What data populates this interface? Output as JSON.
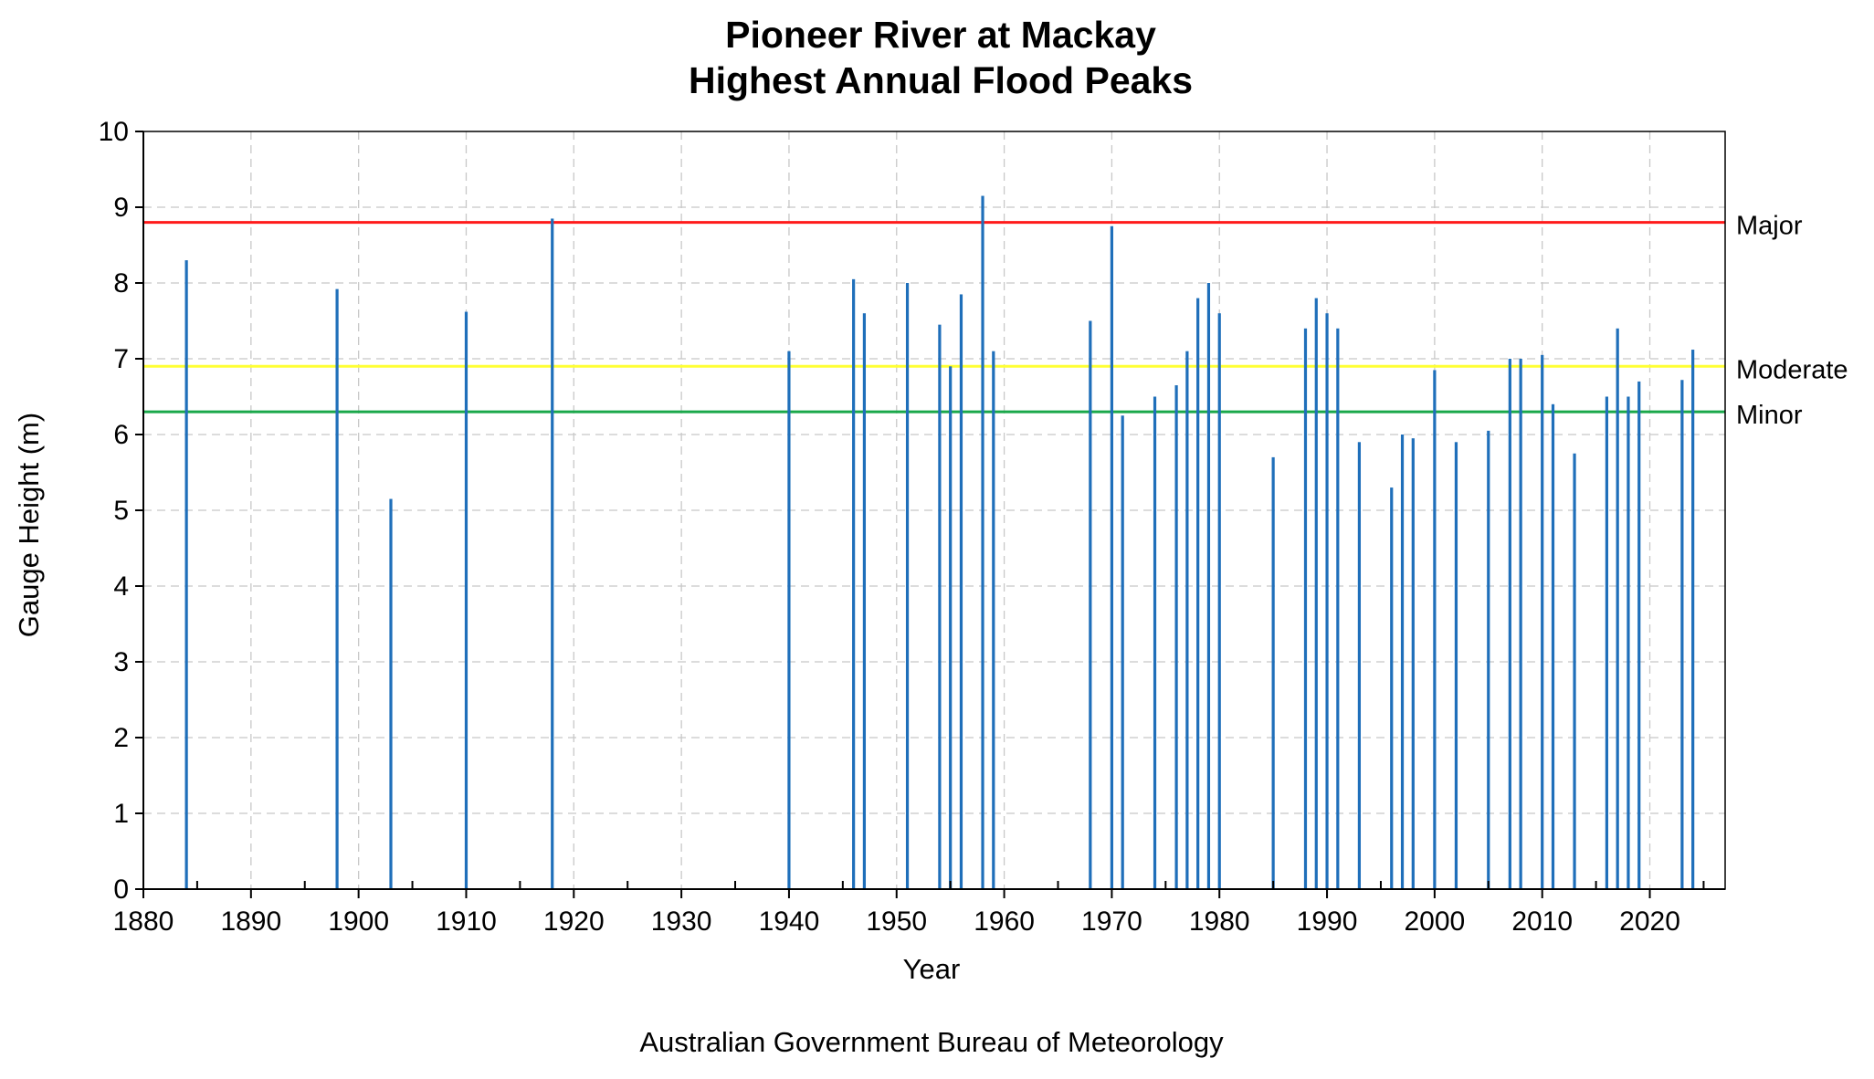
{
  "chart_data": {
    "type": "bar",
    "title": [
      "Pioneer River at Mackay",
      "Highest Annual Flood Peaks"
    ],
    "xlabel": "Year",
    "ylabel": "Gauge Height (m)",
    "source": "Australian Government Bureau of Meteorology",
    "xlim": [
      1880,
      2027
    ],
    "ylim": [
      0,
      10
    ],
    "xticks": [
      1880,
      1890,
      1900,
      1910,
      1920,
      1930,
      1940,
      1950,
      1960,
      1970,
      1980,
      1990,
      2000,
      2010,
      2020
    ],
    "yticks": [
      0,
      1,
      2,
      3,
      4,
      5,
      6,
      7,
      8,
      9,
      10
    ],
    "grid": true,
    "bar_color": "#1f6fba",
    "thresholds": [
      {
        "name": "Major",
        "value": 8.8,
        "color": "#ff1a1a"
      },
      {
        "name": "Moderate",
        "value": 6.9,
        "color": "#ffff33"
      },
      {
        "name": "Minor",
        "value": 6.3,
        "color": "#1aa84a"
      }
    ],
    "x": [
      1884,
      1898,
      1903,
      1910,
      1918,
      1940,
      1946,
      1947,
      1951,
      1954,
      1955,
      1956,
      1958,
      1959,
      1968,
      1970,
      1971,
      1974,
      1976,
      1977,
      1978,
      1979,
      1980,
      1985,
      1988,
      1989,
      1990,
      1991,
      1993,
      1996,
      1997,
      1998,
      2000,
      2002,
      2005,
      2007,
      2008,
      2010,
      2011,
      2013,
      2016,
      2017,
      2018,
      2019,
      2023,
      2024
    ],
    "values": [
      8.3,
      7.92,
      5.15,
      7.62,
      8.85,
      7.1,
      8.05,
      7.6,
      8.0,
      7.45,
      6.9,
      7.85,
      9.15,
      7.1,
      7.5,
      8.75,
      6.25,
      6.5,
      6.65,
      7.1,
      7.8,
      8.0,
      7.6,
      5.7,
      7.4,
      7.8,
      7.6,
      7.4,
      5.9,
      5.3,
      6.0,
      5.95,
      6.85,
      5.9,
      6.05,
      7.0,
      7.0,
      7.05,
      6.4,
      5.75,
      6.5,
      7.4,
      6.5,
      6.7,
      6.72,
      7.12
    ]
  }
}
